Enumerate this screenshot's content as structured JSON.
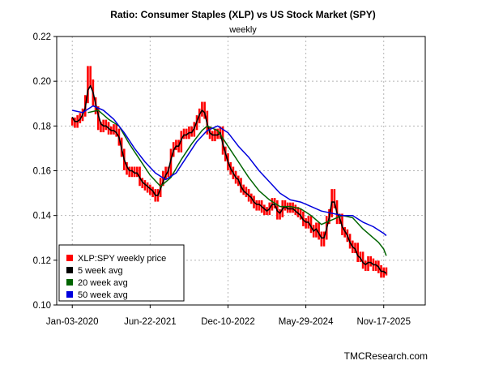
{
  "chart_data": {
    "type": "line",
    "title": "Ratio: Consumer Staples (XLP) vs US Stock Market (SPY)",
    "subtitle": "weekly",
    "xlabel": "",
    "ylabel": "",
    "xlim": [
      -0.3,
      6.8
    ],
    "ylim": [
      0.1,
      0.22
    ],
    "x_tick_labels": [
      "Jan-03-2020",
      "Jun-22-2021",
      "Dec-10-2022",
      "May-29-2024",
      "Nov-17-2025"
    ],
    "x_tick_positions": [
      0,
      1.5,
      3,
      4.5,
      6
    ],
    "y_ticks": [
      0.1,
      0.12,
      0.14,
      0.16,
      0.18,
      0.2,
      0.22
    ],
    "y_tick_labels": [
      "0.10",
      "0.12",
      "0.14",
      "0.16",
      "0.18",
      "0.20",
      "0.22"
    ],
    "grid": true,
    "legend_position": "bottom-left",
    "credit": "TMCResearch.com",
    "x_unit": "years since Jan-03-2020",
    "series": [
      {
        "name": "XLP:SPY weekly price",
        "color": "#ff0000",
        "kind": "bars",
        "x": [
          0.0,
          0.05,
          0.1,
          0.15,
          0.2,
          0.25,
          0.3,
          0.35,
          0.4,
          0.45,
          0.5,
          0.55,
          0.6,
          0.65,
          0.7,
          0.75,
          0.8,
          0.85,
          0.9,
          0.95,
          1.0,
          1.05,
          1.1,
          1.15,
          1.2,
          1.25,
          1.3,
          1.35,
          1.4,
          1.45,
          1.5,
          1.55,
          1.6,
          1.65,
          1.7,
          1.75,
          1.8,
          1.85,
          1.9,
          1.95,
          2.0,
          2.05,
          2.1,
          2.15,
          2.2,
          2.25,
          2.3,
          2.35,
          2.4,
          2.45,
          2.5,
          2.55,
          2.6,
          2.65,
          2.7,
          2.75,
          2.8,
          2.85,
          2.9,
          2.95,
          3.0,
          3.05,
          3.1,
          3.15,
          3.2,
          3.25,
          3.3,
          3.35,
          3.4,
          3.45,
          3.5,
          3.55,
          3.6,
          3.65,
          3.7,
          3.75,
          3.8,
          3.85,
          3.9,
          3.95,
          4.0,
          4.05,
          4.1,
          4.15,
          4.2,
          4.25,
          4.3,
          4.35,
          4.4,
          4.45,
          4.5,
          4.55,
          4.6,
          4.65,
          4.7,
          4.75,
          4.8,
          4.85,
          4.9,
          4.95,
          5.0,
          5.05,
          5.1,
          5.15,
          5.2,
          5.25,
          5.3,
          5.35,
          5.4,
          5.45,
          5.5,
          5.55,
          5.6,
          5.65,
          5.7,
          5.75,
          5.8,
          5.85,
          5.9,
          5.95,
          6.0,
          6.05
        ],
        "values": [
          0.182,
          0.181,
          0.183,
          0.184,
          0.186,
          0.192,
          0.205,
          0.199,
          0.191,
          0.187,
          0.18,
          0.179,
          0.181,
          0.18,
          0.178,
          0.178,
          0.179,
          0.177,
          0.173,
          0.168,
          0.162,
          0.16,
          0.159,
          0.16,
          0.159,
          0.16,
          0.155,
          0.154,
          0.153,
          0.152,
          0.151,
          0.15,
          0.148,
          0.15,
          0.155,
          0.158,
          0.16,
          0.159,
          0.168,
          0.171,
          0.172,
          0.17,
          0.176,
          0.177,
          0.176,
          0.178,
          0.177,
          0.18,
          0.183,
          0.186,
          0.189,
          0.185,
          0.178,
          0.176,
          0.175,
          0.177,
          0.176,
          0.178,
          0.169,
          0.166,
          0.162,
          0.16,
          0.158,
          0.156,
          0.155,
          0.152,
          0.151,
          0.15,
          0.148,
          0.147,
          0.145,
          0.144,
          0.145,
          0.143,
          0.142,
          0.142,
          0.144,
          0.146,
          0.145,
          0.14,
          0.141,
          0.145,
          0.144,
          0.143,
          0.144,
          0.143,
          0.142,
          0.141,
          0.14,
          0.137,
          0.136,
          0.138,
          0.134,
          0.132,
          0.135,
          0.131,
          0.128,
          0.131,
          0.138,
          0.141,
          0.15,
          0.145,
          0.138,
          0.139,
          0.133,
          0.132,
          0.13,
          0.127,
          0.125,
          0.126,
          0.121,
          0.122,
          0.118,
          0.117,
          0.12,
          0.119,
          0.117,
          0.118,
          0.116,
          0.114,
          0.115,
          0.115
        ]
      },
      {
        "name": "5 week avg",
        "color": "#000000",
        "kind": "line",
        "x": [
          0.0,
          0.05,
          0.1,
          0.15,
          0.2,
          0.25,
          0.3,
          0.35,
          0.4,
          0.45,
          0.5,
          0.55,
          0.6,
          0.65,
          0.7,
          0.75,
          0.8,
          0.85,
          0.9,
          0.95,
          1.0,
          1.05,
          1.1,
          1.15,
          1.2,
          1.25,
          1.3,
          1.35,
          1.4,
          1.45,
          1.5,
          1.55,
          1.6,
          1.65,
          1.7,
          1.75,
          1.8,
          1.85,
          1.9,
          1.95,
          2.0,
          2.05,
          2.1,
          2.15,
          2.2,
          2.25,
          2.3,
          2.35,
          2.4,
          2.45,
          2.5,
          2.55,
          2.6,
          2.65,
          2.7,
          2.75,
          2.8,
          2.85,
          2.9,
          2.95,
          3.0,
          3.05,
          3.1,
          3.15,
          3.2,
          3.25,
          3.3,
          3.35,
          3.4,
          3.45,
          3.5,
          3.55,
          3.6,
          3.65,
          3.7,
          3.75,
          3.8,
          3.85,
          3.9,
          3.95,
          4.0,
          4.05,
          4.1,
          4.15,
          4.2,
          4.25,
          4.3,
          4.35,
          4.4,
          4.45,
          4.5,
          4.55,
          4.6,
          4.65,
          4.7,
          4.75,
          4.8,
          4.85,
          4.9,
          4.95,
          5.0,
          5.05,
          5.1,
          5.15,
          5.2,
          5.25,
          5.3,
          5.35,
          5.4,
          5.45,
          5.5,
          5.55,
          5.6,
          5.65,
          5.7,
          5.75,
          5.8,
          5.85,
          5.9,
          5.95,
          6.0,
          6.05
        ],
        "values": [
          0.184,
          0.182,
          0.182,
          0.183,
          0.185,
          0.188,
          0.196,
          0.198,
          0.195,
          0.19,
          0.185,
          0.181,
          0.18,
          0.18,
          0.179,
          0.178,
          0.178,
          0.177,
          0.175,
          0.17,
          0.165,
          0.162,
          0.16,
          0.16,
          0.159,
          0.159,
          0.157,
          0.155,
          0.154,
          0.153,
          0.152,
          0.151,
          0.149,
          0.149,
          0.152,
          0.155,
          0.158,
          0.16,
          0.165,
          0.169,
          0.171,
          0.171,
          0.174,
          0.176,
          0.176,
          0.177,
          0.177,
          0.179,
          0.182,
          0.185,
          0.187,
          0.186,
          0.181,
          0.177,
          0.176,
          0.176,
          0.176,
          0.177,
          0.172,
          0.168,
          0.164,
          0.161,
          0.159,
          0.157,
          0.156,
          0.153,
          0.151,
          0.15,
          0.149,
          0.148,
          0.146,
          0.145,
          0.145,
          0.144,
          0.143,
          0.142,
          0.143,
          0.145,
          0.145,
          0.142,
          0.141,
          0.143,
          0.144,
          0.143,
          0.143,
          0.143,
          0.142,
          0.141,
          0.14,
          0.138,
          0.137,
          0.137,
          0.135,
          0.133,
          0.134,
          0.132,
          0.13,
          0.13,
          0.134,
          0.139,
          0.146,
          0.146,
          0.141,
          0.139,
          0.135,
          0.133,
          0.131,
          0.128,
          0.126,
          0.125,
          0.122,
          0.121,
          0.119,
          0.118,
          0.119,
          0.119,
          0.118,
          0.118,
          0.117,
          0.115,
          0.115,
          0.114
        ]
      },
      {
        "name": "20 week avg",
        "color": "#006400",
        "kind": "line",
        "x": [
          0.3,
          0.5,
          0.7,
          0.9,
          1.1,
          1.3,
          1.5,
          1.7,
          1.9,
          2.1,
          2.3,
          2.5,
          2.6,
          2.8,
          3.0,
          3.2,
          3.4,
          3.6,
          3.8,
          4.0,
          4.2,
          4.4,
          4.6,
          4.8,
          5.0,
          5.2,
          5.4,
          5.6,
          5.8,
          5.9,
          6.0,
          6.05
        ],
        "values": [
          0.186,
          0.187,
          0.183,
          0.18,
          0.172,
          0.165,
          0.158,
          0.153,
          0.157,
          0.165,
          0.172,
          0.178,
          0.18,
          0.178,
          0.171,
          0.164,
          0.157,
          0.151,
          0.147,
          0.144,
          0.144,
          0.143,
          0.14,
          0.136,
          0.138,
          0.14,
          0.139,
          0.134,
          0.13,
          0.128,
          0.125,
          0.122
        ]
      },
      {
        "name": "50 week avg",
        "color": "#0000dd",
        "kind": "line",
        "x": [
          0.0,
          0.2,
          0.4,
          0.6,
          0.8,
          1.0,
          1.2,
          1.4,
          1.6,
          1.8,
          2.0,
          2.2,
          2.4,
          2.6,
          2.8,
          3.0,
          3.2,
          3.4,
          3.6,
          3.8,
          4.0,
          4.2,
          4.4,
          4.6,
          4.8,
          5.0,
          5.2,
          5.4,
          5.6,
          5.8,
          6.0,
          6.05
        ],
        "values": [
          0.187,
          0.186,
          0.189,
          0.187,
          0.183,
          0.177,
          0.17,
          0.164,
          0.159,
          0.156,
          0.159,
          0.166,
          0.173,
          0.178,
          0.18,
          0.177,
          0.171,
          0.166,
          0.16,
          0.155,
          0.15,
          0.147,
          0.146,
          0.144,
          0.142,
          0.141,
          0.14,
          0.14,
          0.137,
          0.135,
          0.132,
          0.131
        ]
      }
    ]
  }
}
